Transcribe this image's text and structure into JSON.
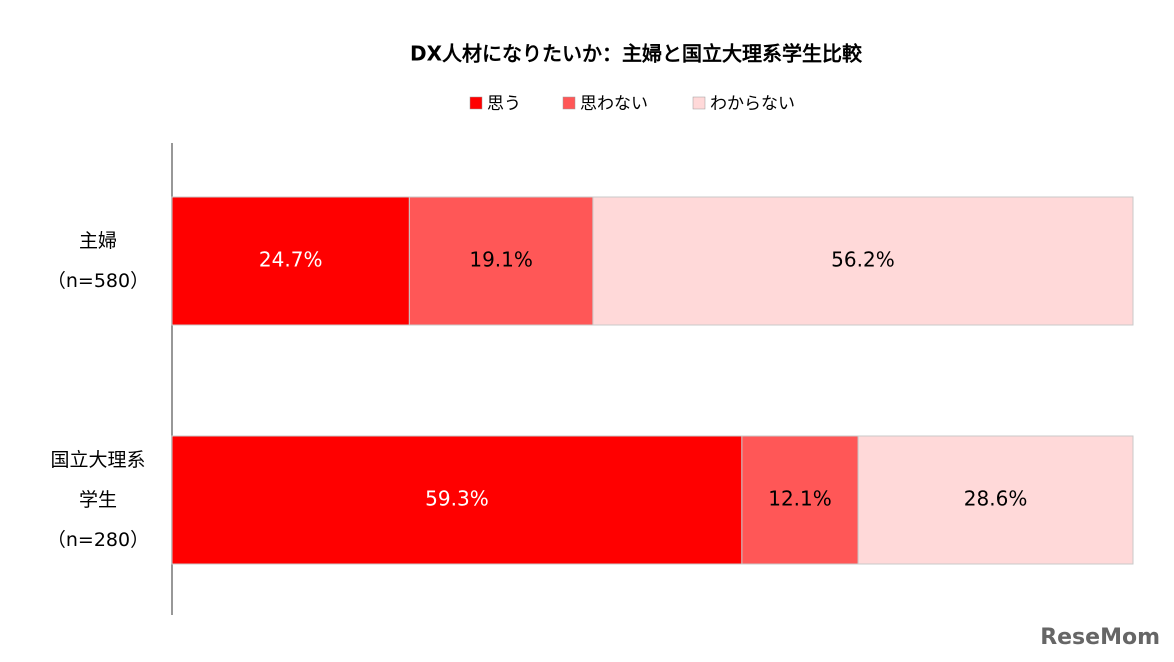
{
  "chart_data": {
    "type": "stacked-bar-horizontal",
    "title": "DX人材になりたいか：主婦と国立大理系学生比較",
    "categories": [
      "主婦\n（n=580）",
      "国立大理系\n学生\n（n=280）"
    ],
    "series": [
      {
        "name": "思う",
        "color": "#ff0000",
        "values": [
          24.7,
          59.3
        ],
        "value_labels": [
          "24.7%",
          "59.3%"
        ],
        "label_color": "#ffffff"
      },
      {
        "name": "思わない",
        "color": "#ff5757",
        "values": [
          19.1,
          12.1
        ],
        "value_labels": [
          "19.1%",
          "12.1%"
        ],
        "label_color": "#000000"
      },
      {
        "name": "わからない",
        "color": "#ffd9d9",
        "values": [
          56.2,
          28.6
        ],
        "value_labels": [
          "56.2%",
          "28.6%"
        ],
        "label_color": "#000000"
      }
    ],
    "xlim": [
      0,
      100
    ],
    "watermark": "ReseMom"
  }
}
